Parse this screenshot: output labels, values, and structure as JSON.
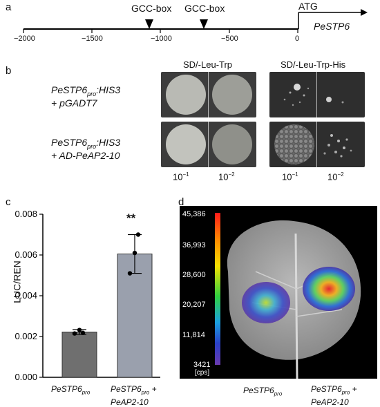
{
  "panel_a": {
    "label": "a",
    "gcc_box_1": "GCC-box",
    "gcc_box_2": "GCC-box",
    "atg": "ATG",
    "gene": "PeSTP6",
    "ticks": [
      "−2000",
      "−1500",
      "−1000",
      "−500",
      "0"
    ]
  },
  "panel_b": {
    "label": "b",
    "col_header_1": "SD/-Leu-Trp",
    "col_header_2": "SD/-Leu-Trp-His",
    "row1_line1_main": "PeSTP6",
    "row1_line1_sub": "pro",
    "row1_line1_suffix": ":HIS3",
    "row1_line2": "+ pGADT7",
    "row2_line1_main": "PeSTP6",
    "row2_line1_sub": "pro",
    "row2_line1_suffix": ":HIS3",
    "row2_line2": "+ AD-PeAP2-10",
    "dilution_base": "10",
    "dilution_1_exp": "−1",
    "dilution_2_exp": "−2"
  },
  "panel_c": {
    "label": "c",
    "significance": "**"
  },
  "chart_data": {
    "type": "bar",
    "categories": [
      "PeSTP6pro",
      "PeSTP6pro + PeAP2-10"
    ],
    "values": [
      0.00222,
      0.00605
    ],
    "errors": [
      0.00012,
      0.00095
    ],
    "points": [
      [
        0.00215,
        0.00232,
        0.00218
      ],
      [
        0.0051,
        0.0061,
        0.007
      ]
    ],
    "ylabel": "LUC/REN",
    "ylim": [
      0,
      0.008
    ],
    "yticks": [
      "0.000",
      "0.002",
      "0.004",
      "0.006",
      "0.008"
    ],
    "bar_colors": [
      "#6f6f6f",
      "#9aa0ad"
    ]
  },
  "panel_c_labels": {
    "cat1_main": "PeSTP6",
    "cat1_sub": "pro",
    "cat2_main": "PeSTP6",
    "cat2_sub": "pro",
    "cat2_suffix": " +",
    "cat2_line2": "PeAP2-10"
  },
  "panel_d": {
    "label": "d",
    "scale_values": [
      "45,386",
      "36,993",
      "28,600",
      "20,207",
      "11,814",
      "3421"
    ],
    "scale_unit": "[cps]",
    "left_main": "PeSTP6",
    "left_sub": "pro",
    "right_main": "PeSTP6",
    "right_sub": "pro",
    "right_suffix": " +",
    "right_line2": "PeAP2-10"
  }
}
